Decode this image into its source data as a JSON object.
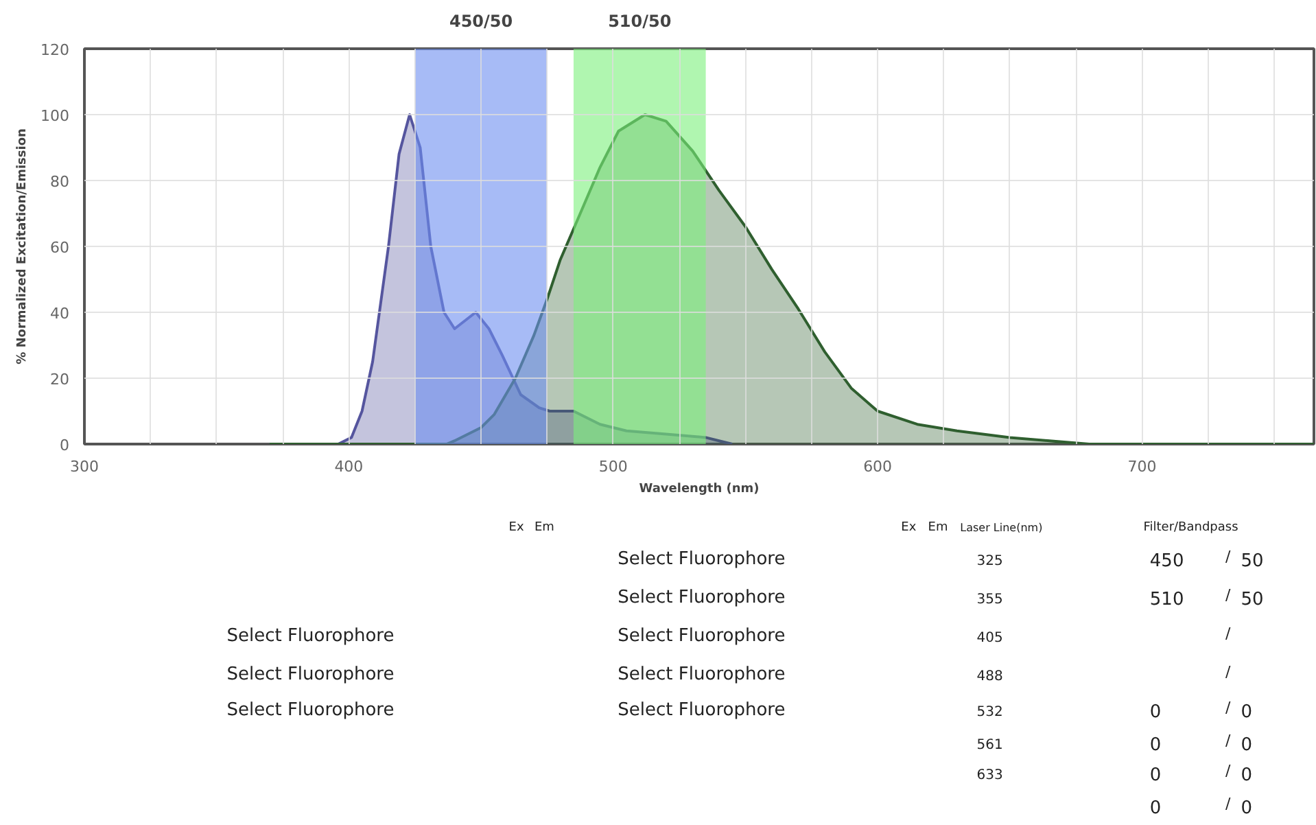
{
  "chart_data": {
    "type": "area",
    "xlabel": "Wavelength (nm)",
    "ylabel": "% Normalized Excitation/Emission",
    "xlim": [
      300,
      765
    ],
    "ylim": [
      0,
      120
    ],
    "xticks": [
      300,
      {
        "value": 325,
        "label": null
      },
      {
        "value": 350,
        "label": null
      },
      {
        "value": 375,
        "label": null
      },
      400,
      {
        "value": 425,
        "label": null
      },
      {
        "value": 450,
        "label": null
      },
      {
        "value": 475,
        "label": null
      },
      500,
      {
        "value": 525,
        "label": null
      },
      {
        "value": 550,
        "label": null
      },
      {
        "value": 575,
        "label": null
      },
      600,
      {
        "value": 625,
        "label": null
      },
      {
        "value": 650,
        "label": null
      },
      {
        "value": 675,
        "label": null
      },
      700,
      {
        "value": 725,
        "label": null
      },
      {
        "value": 750,
        "label": null
      }
    ],
    "yticks": [
      0,
      20,
      40,
      60,
      80,
      100,
      120
    ],
    "grid": true,
    "series": [
      {
        "color": "#55559e",
        "x": [
          370,
          396,
          401,
          405,
          409,
          415,
          419,
          423,
          427,
          431,
          436,
          440,
          448,
          453,
          458,
          465,
          472,
          476,
          485,
          495,
          505,
          520,
          535,
          540,
          545
        ],
        "values": [
          0,
          0,
          2,
          10,
          25,
          60,
          88,
          100,
          90,
          60,
          40,
          35,
          40,
          35,
          27,
          15,
          11,
          10,
          10,
          6,
          4,
          3,
          2,
          1,
          0
        ]
      },
      {
        "color": "#2f5f2f",
        "x": [
          370,
          437,
          440,
          450,
          455,
          463,
          470,
          475,
          480,
          487,
          495,
          502,
          512,
          520,
          530,
          540,
          550,
          560,
          570,
          580,
          590,
          600,
          615,
          630,
          650,
          665,
          680,
          765
        ],
        "values": [
          0,
          0,
          1,
          5,
          9,
          20,
          33,
          44,
          56,
          69,
          84,
          95,
          100,
          98,
          89,
          77,
          66,
          53,
          41,
          28,
          17,
          10,
          6,
          4,
          2,
          1,
          0,
          0
        ]
      }
    ],
    "bands": [
      {
        "axis": "x",
        "from": 425,
        "to": 475,
        "label": "450/50",
        "color": "#6d8ef0"
      },
      {
        "axis": "x",
        "from": 485,
        "to": 535,
        "label": "510/50",
        "color": "#7cf07c"
      }
    ],
    "annotations": [
      "Ex",
      "Em",
      "Ex",
      "Em",
      "Laser Line(nm)",
      "Filter/Bandpass",
      "Select Fluorophore",
      "Select Fluorophore",
      "Select Fluorophore",
      "Select Fluorophore",
      "Select Fluorophore",
      "Select Fluorophore",
      "Select Fluorophore",
      "Select Fluorophore",
      "325",
      "355",
      "405",
      "488",
      "532",
      "561",
      "633",
      "450",
      "50",
      "510",
      "50",
      "0",
      "0",
      "0",
      "0",
      "0",
      "0",
      "0",
      "0",
      "/",
      "/",
      "/",
      "/",
      "/",
      "/",
      "/",
      "/"
    ]
  }
}
